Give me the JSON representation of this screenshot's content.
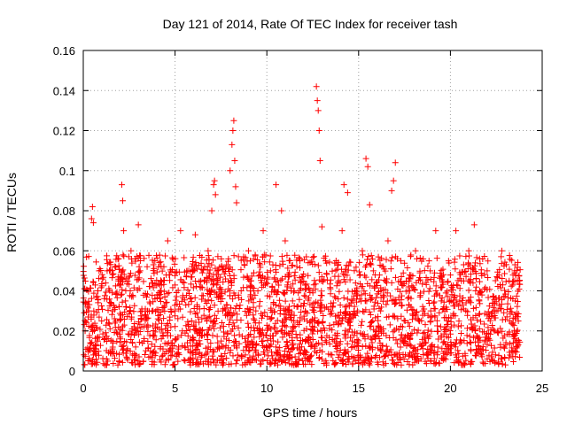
{
  "chart_data": {
    "type": "scatter",
    "title": "Day 121 of 2014, Rate Of TEC Index for receiver tash",
    "xlabel": "GPS time / hours",
    "ylabel": "ROTI / TECUs",
    "xlim": [
      0,
      25
    ],
    "ylim": [
      0,
      0.16
    ],
    "xticks": [
      0,
      5,
      10,
      15,
      20,
      25
    ],
    "xtick_labels": [
      "0",
      "5",
      "10",
      "15",
      "20",
      "25"
    ],
    "yticks": [
      0,
      0.02,
      0.04,
      0.06,
      0.08,
      0.1,
      0.12,
      0.14,
      0.16
    ],
    "ytick_labels": [
      "0",
      "0.02",
      "0.04",
      "0.06",
      "0.08",
      "0.1",
      "0.12",
      "0.14",
      "0.16"
    ],
    "grid": true,
    "marker": "+",
    "color": "#ff0000",
    "series": [
      {
        "name": "ROTI",
        "x": [
          0.1,
          0.3,
          0.45,
          0.5,
          0.55,
          0.8,
          1.0,
          1.3,
          1.6,
          1.9,
          2.1,
          2.15,
          2.2,
          2.3,
          2.6,
          2.9,
          3.0,
          3.1,
          3.5,
          3.9,
          4.2,
          4.6,
          5.0,
          5.3,
          5.7,
          5.9,
          6.1,
          6.4,
          6.8,
          7.0,
          7.1,
          7.15,
          7.2,
          7.3,
          7.6,
          8.0,
          8.1,
          8.15,
          8.2,
          8.25,
          8.3,
          8.35,
          8.6,
          9.0,
          9.4,
          9.8,
          10.2,
          10.5,
          10.6,
          10.8,
          11.0,
          11.4,
          11.8,
          12.2,
          12.5,
          12.7,
          12.75,
          12.8,
          12.85,
          12.9,
          13.0,
          13.2,
          13.5,
          13.9,
          14.1,
          14.2,
          14.4,
          14.8,
          15.2,
          15.4,
          15.5,
          15.6,
          15.8,
          16.2,
          16.6,
          16.8,
          16.9,
          17.0,
          17.3,
          17.7,
          18.1,
          18.5,
          18.9,
          19.2,
          19.5,
          19.9,
          20.3,
          20.6,
          21.0,
          21.3,
          21.6,
          22.0,
          22.4,
          22.8,
          23.2,
          23.5,
          23.7
        ],
        "y": [
          0.02,
          0.03,
          0.076,
          0.082,
          0.074,
          0.04,
          0.025,
          0.05,
          0.03,
          0.045,
          0.093,
          0.085,
          0.07,
          0.035,
          0.06,
          0.02,
          0.073,
          0.05,
          0.03,
          0.055,
          0.04,
          0.065,
          0.03,
          0.07,
          0.05,
          0.025,
          0.068,
          0.045,
          0.06,
          0.08,
          0.093,
          0.095,
          0.088,
          0.05,
          0.03,
          0.1,
          0.113,
          0.12,
          0.125,
          0.105,
          0.092,
          0.084,
          0.04,
          0.06,
          0.03,
          0.07,
          0.05,
          0.093,
          0.045,
          0.08,
          0.065,
          0.035,
          0.055,
          0.025,
          0.04,
          0.142,
          0.135,
          0.13,
          0.12,
          0.105,
          0.072,
          0.055,
          0.03,
          0.045,
          0.07,
          0.093,
          0.089,
          0.04,
          0.06,
          0.106,
          0.102,
          0.083,
          0.05,
          0.03,
          0.065,
          0.09,
          0.095,
          0.104,
          0.055,
          0.04,
          0.06,
          0.03,
          0.05,
          0.07,
          0.035,
          0.055,
          0.07,
          0.045,
          0.06,
          0.073,
          0.04,
          0.05,
          0.03,
          0.06,
          0.045,
          0.05,
          0.025
        ]
      }
    ],
    "dense_band": {
      "x_range": [
        0,
        23.8
      ],
      "y_range": [
        0.003,
        0.058
      ]
    }
  }
}
